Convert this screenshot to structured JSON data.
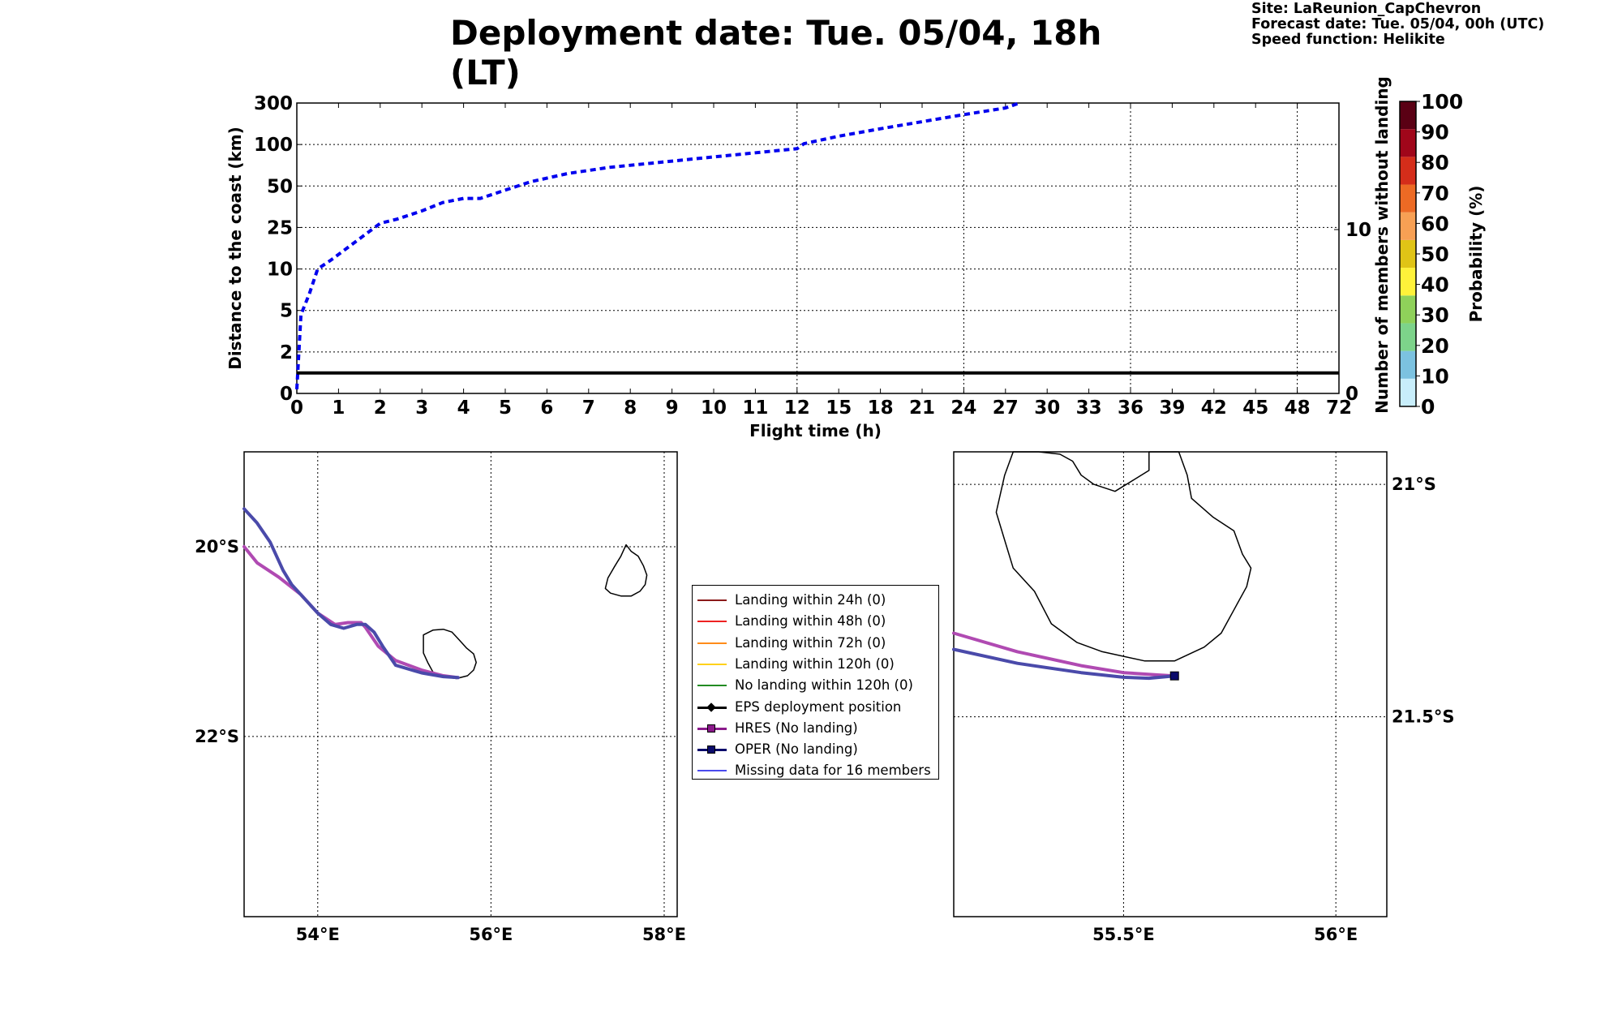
{
  "header": {
    "title": "Deployment date: Tue. 05/04, 18h (LT)",
    "site": "Site: LaReunion_CapChevron",
    "forecast_date": "Forecast date: Tue. 05/04, 00h (UTC)",
    "speed_function": "Speed function: Helikite"
  },
  "chart_data": [
    {
      "type": "line",
      "xlabel": "Flight time (h)",
      "ylabel": "Distance to the coast (km)",
      "ylabel_right": "Number of members without landing",
      "x_ticks": [
        "0",
        "1",
        "2",
        "3",
        "4",
        "5",
        "6",
        "7",
        "8",
        "9",
        "10",
        "11",
        "12",
        "15",
        "18",
        "21",
        "24",
        "27",
        "30",
        "33",
        "36",
        "39",
        "42",
        "45",
        "48",
        "72"
      ],
      "y_ticks": [
        "0",
        "2",
        "5",
        "10",
        "25",
        "50",
        "100",
        "300"
      ],
      "y_right_ticks": [
        "0",
        "10"
      ],
      "grid": true,
      "y_scale": "non-linear (ticks evenly spaced)",
      "series": [
        {
          "style": "dashed",
          "color": "#0000ee",
          "x": [
            0,
            0.1,
            0.3,
            0.5,
            0.8,
            1.2,
            1.6,
            2.0,
            2.4,
            3.0,
            3.5,
            4.0,
            4.4,
            5.0,
            5.6,
            6.5,
            7.5,
            8.5,
            9.5,
            10.5,
            11.5,
            12,
            12.5,
            15,
            18,
            21,
            24,
            27,
            28
          ],
          "y_pos": [
            0.1,
            1.9,
            2.4,
            3.0,
            3.2,
            3.5,
            3.8,
            4.1,
            4.2,
            4.4,
            4.6,
            4.7,
            4.7,
            4.9,
            5.1,
            5.3,
            5.45,
            5.55,
            5.65,
            5.75,
            5.85,
            5.9,
            6.02,
            6.2,
            6.38,
            6.55,
            6.72,
            6.88,
            7.0
          ]
        },
        {
          "style": "solid",
          "color": "#000000",
          "label": "members without landing",
          "x": [
            0,
            72
          ],
          "y_right": [
            1,
            1
          ]
        }
      ]
    },
    {
      "type": "map",
      "x_ticks": [
        "54°E",
        "56°E",
        "58°E"
      ],
      "y_ticks": [
        "20°S",
        "22°S"
      ],
      "grid": true,
      "xlim": [
        53.15,
        58.15
      ],
      "ylim": [
        -23.9,
        -19.0
      ],
      "series": [
        {
          "name": "HRES",
          "color": "#b04ab2",
          "lon": [
            53.15,
            53.3,
            53.55,
            53.8,
            54.0,
            54.2,
            54.35,
            54.5,
            54.55,
            54.7,
            54.9,
            55.2,
            55.45,
            55.62
          ],
          "lat": [
            -20.0,
            -20.17,
            -20.32,
            -20.5,
            -20.7,
            -20.82,
            -20.8,
            -20.8,
            -20.85,
            -21.05,
            -21.2,
            -21.3,
            -21.36,
            -21.38
          ]
        },
        {
          "name": "OPER",
          "color": "#4a4aaa",
          "lon": [
            53.15,
            53.3,
            53.45,
            53.6,
            53.7,
            54.0,
            54.15,
            54.3,
            54.45,
            54.55,
            54.65,
            54.75,
            54.9,
            55.2,
            55.45,
            55.62
          ],
          "lat": [
            -19.6,
            -19.75,
            -19.95,
            -20.25,
            -20.4,
            -20.7,
            -20.82,
            -20.86,
            -20.82,
            -20.82,
            -20.9,
            -21.05,
            -21.25,
            -21.33,
            -21.37,
            -21.38
          ]
        }
      ]
    },
    {
      "type": "map",
      "x_ticks": [
        "55.5°E",
        "56°E"
      ],
      "y_ticks": [
        "21°S",
        "21.5°S"
      ],
      "grid": true,
      "xlim": [
        55.1,
        56.12
      ],
      "ylim": [
        -21.93,
        -20.93
      ],
      "series": [
        {
          "name": "HRES",
          "color": "#b04ab2",
          "lon": [
            55.1,
            55.25,
            55.4,
            55.5,
            55.58,
            55.62
          ],
          "lat": [
            -21.32,
            -21.36,
            -21.39,
            -21.405,
            -21.41,
            -21.412
          ]
        },
        {
          "name": "OPER",
          "color": "#4a4aaa",
          "lon": [
            55.1,
            55.25,
            55.4,
            55.5,
            55.56,
            55.62
          ],
          "lat": [
            -21.355,
            -21.385,
            -21.405,
            -21.415,
            -21.417,
            -21.412
          ]
        }
      ]
    },
    {
      "type": "colorbar",
      "label": "Probability (%)",
      "ticks": [
        "0",
        "10",
        "20",
        "30",
        "40",
        "50",
        "60",
        "70",
        "80",
        "90",
        "100"
      ],
      "colors": [
        "#c8eefb",
        "#7cc2e0",
        "#7dd38a",
        "#8fd15a",
        "#fff23a",
        "#e0c416",
        "#f7a054",
        "#ec6a24",
        "#d42d1a",
        "#a0061a",
        "#5a0014"
      ]
    }
  ],
  "legend": {
    "items": [
      {
        "label": "Landing within 24h (0)",
        "color": "#8b1a1a",
        "marker": "none"
      },
      {
        "label": "Landing within 48h (0)",
        "color": "#ee2222",
        "marker": "none"
      },
      {
        "label": "Landing within 72h (0)",
        "color": "#ff8c1a",
        "marker": "none"
      },
      {
        "label": "Landing within 120h (0)",
        "color": "#ffd11a",
        "marker": "none"
      },
      {
        "label": "No landing within 120h (0)",
        "color": "#228b22",
        "marker": "none"
      },
      {
        "label": "EPS deployment position",
        "color": "#000000",
        "marker": "diamond"
      },
      {
        "label": "HRES (No landing)",
        "color": "#8b1a8b",
        "marker": "square"
      },
      {
        "label": "OPER (No landing)",
        "color": "#0b0b6b",
        "marker": "square"
      },
      {
        "label": "Missing data for 16 members",
        "color": "#4a4aee",
        "marker": "none"
      }
    ]
  }
}
